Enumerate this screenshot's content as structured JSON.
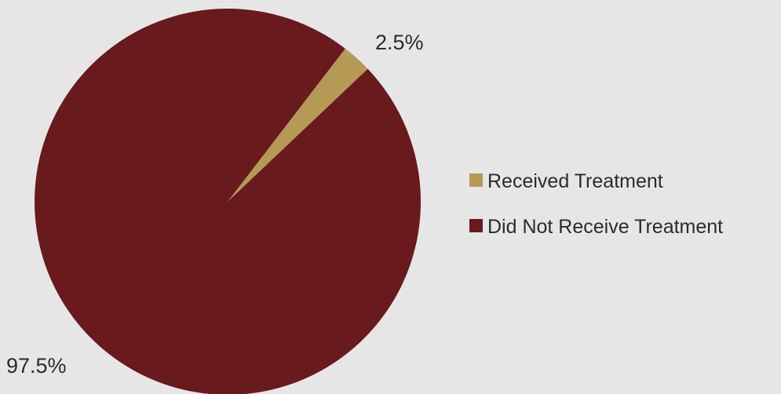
{
  "chart_data": {
    "type": "pie",
    "title": "",
    "slices": [
      {
        "label": "Received Treatment",
        "value": 2.5,
        "display": "2.5%",
        "color": "#b59a55"
      },
      {
        "label": "Did Not Receive Treatment",
        "value": 97.5,
        "display": "97.5%",
        "color": "#681a1d"
      }
    ],
    "legend_position": "right",
    "start": "top, clockwise"
  }
}
